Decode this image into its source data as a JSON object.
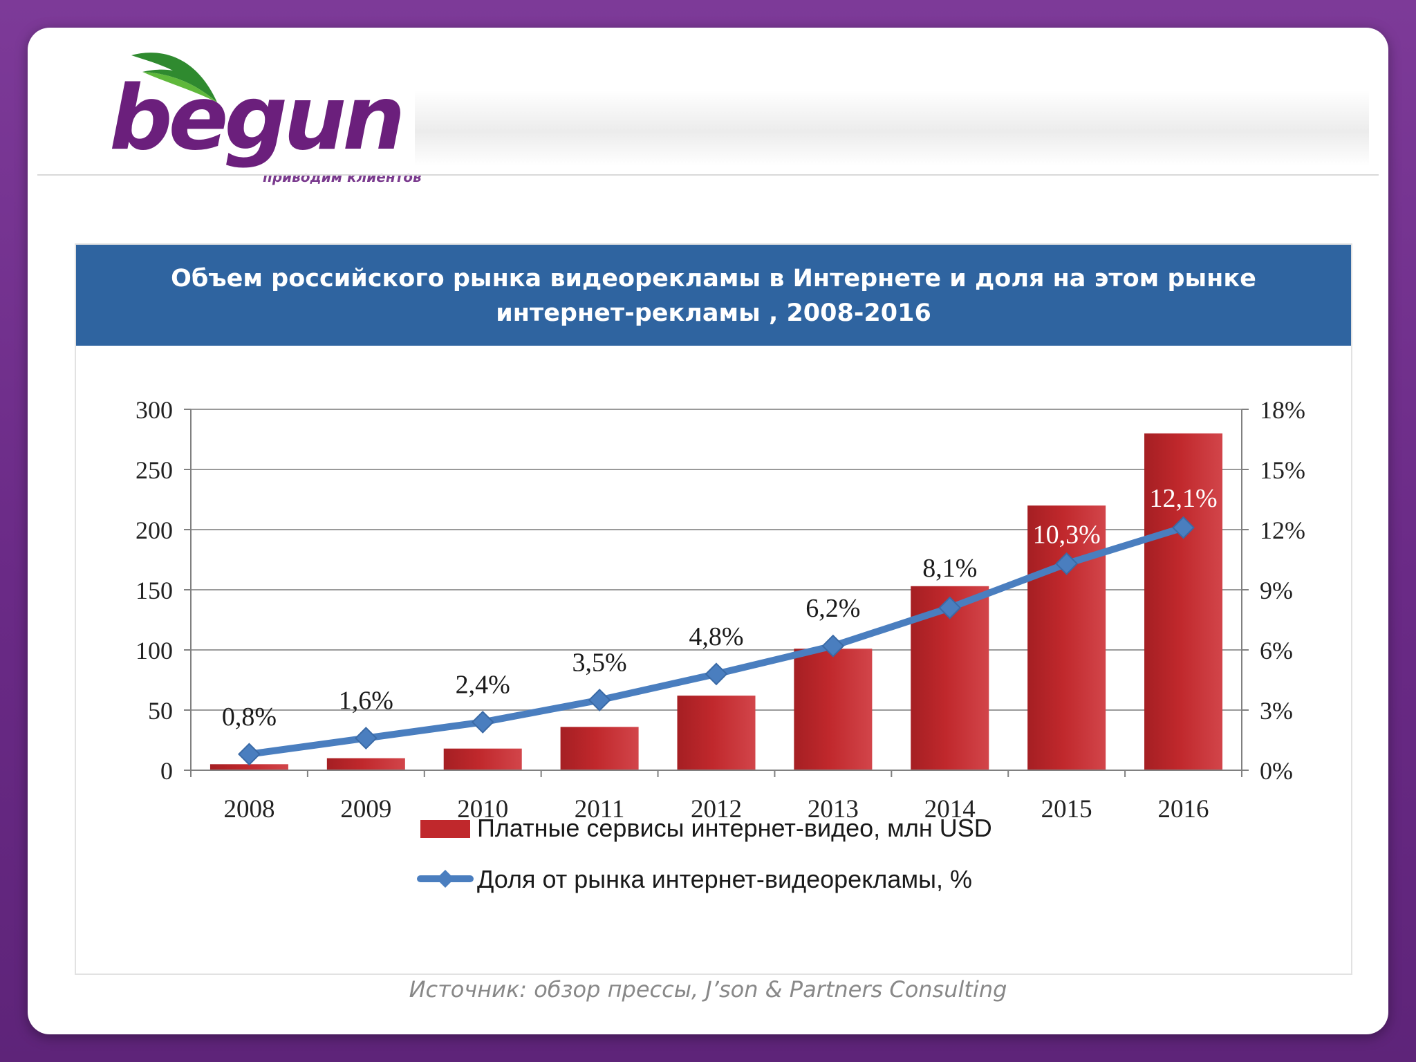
{
  "logo": {
    "wordmark": "begun",
    "tagline": "приводим клиентов"
  },
  "colors": {
    "bar": "#c0282c",
    "line": "#4a7ebf",
    "title_bg": "#2f64a0"
  },
  "source_note": "Источник: обзор прессы, J’son & Partners Consulting",
  "chart_data": {
    "type": "bar",
    "title": "Объем российского рынка видеорекламы в Интернете и доля на этом рынке интернет-рекламы , 2008-2016",
    "categories": [
      "2008",
      "2009",
      "2010",
      "2011",
      "2012",
      "2013",
      "2014",
      "2015",
      "2016"
    ],
    "series": [
      {
        "name": "Платные сервисы интернет-видео, млн USD",
        "type": "bar",
        "axis": "left",
        "values": [
          5,
          10,
          18,
          36,
          62,
          101,
          153,
          220,
          280
        ]
      },
      {
        "name": "Доля от рынка интернет-видеорекламы, %",
        "type": "line",
        "axis": "right",
        "values": [
          0.8,
          1.6,
          2.4,
          3.5,
          4.8,
          6.2,
          8.1,
          10.3,
          12.1
        ],
        "labels": [
          "0,8%",
          "1,6%",
          "2,4%",
          "3,5%",
          "4,8%",
          "6,2%",
          "8,1%",
          "10,3%",
          "12,1%"
        ]
      }
    ],
    "y_left": {
      "min": 0,
      "max": 300,
      "ticks": [
        0,
        50,
        100,
        150,
        200,
        250,
        300
      ]
    },
    "y_right": {
      "min": 0,
      "max": 18,
      "ticks": [
        "0%",
        "3%",
        "6%",
        "9%",
        "12%",
        "15%",
        "18%"
      ]
    },
    "grid": true,
    "legend_position": "bottom"
  }
}
